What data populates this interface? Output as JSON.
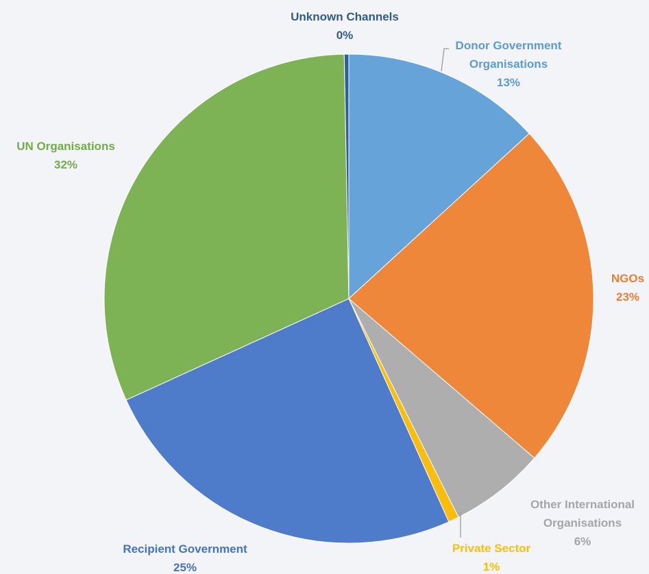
{
  "chart_data": {
    "type": "pie",
    "title": "",
    "start_angle_deg": 0,
    "direction": "clockwise",
    "slices": [
      {
        "name": "Donor Government Organisations",
        "value": 13.2,
        "pct_label": "13%",
        "color": "#66a3d9",
        "label_lines": [
          "Donor Government",
          "Organisations"
        ]
      },
      {
        "name": "NGOs",
        "value": 23.1,
        "pct_label": "23%",
        "color": "#ee873a",
        "label_lines": [
          "NGOs"
        ]
      },
      {
        "name": "Other International Organisations",
        "value": 6.3,
        "pct_label": "6%",
        "color": "#aeaeae",
        "label_lines": [
          "Other International",
          "Organisations"
        ]
      },
      {
        "name": "Private Sector",
        "value": 0.7,
        "pct_label": "1%",
        "color": "#fbbd0d",
        "label_lines": [
          "Private Sector"
        ]
      },
      {
        "name": "Recipient Government",
        "value": 24.9,
        "pct_label": "25%",
        "color": "#4f7cca",
        "label_lines": [
          "Recipient Government"
        ]
      },
      {
        "name": "UN Organisations",
        "value": 31.5,
        "pct_label": "32%",
        "color": "#7db354",
        "label_lines": [
          "UN Organisations"
        ]
      },
      {
        "name": "Unknown Channels",
        "value": 0.3,
        "pct_label": "0%",
        "color": "#2f5f99",
        "label_lines": [
          "Unknown Channels"
        ]
      }
    ],
    "label_colors": {
      "Donor Government Organisations": "#5b9bd5",
      "NGOs": "#ed7d31",
      "Other International Organisations": "#a5a5a5",
      "Private Sector": "#ffc000",
      "Recipient Government": "#4472c4",
      "UN Organisations": "#70ad47",
      "Unknown Channels": "#2e5c8a"
    },
    "legend": "none"
  }
}
